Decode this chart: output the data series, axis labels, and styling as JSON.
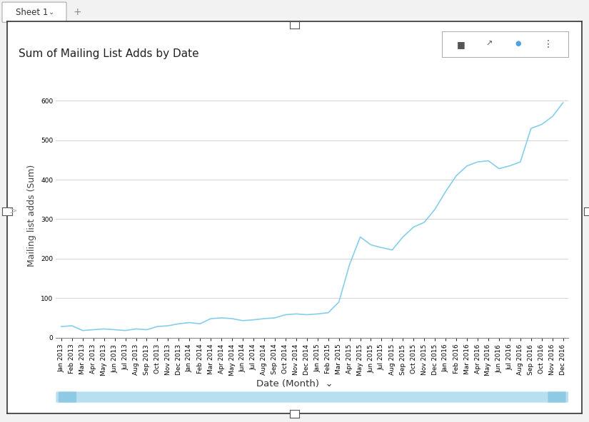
{
  "title": "Sum of Mailing List Adds by Date",
  "xlabel": "Date (Month)",
  "ylabel": "Mailing list adds (Sum)",
  "line_color": "#87CEEB",
  "line_width": 1.2,
  "background_color": "#ffffff",
  "grid_color": "#cccccc",
  "ylim": [
    0,
    620
  ],
  "yticks": [
    0,
    100,
    200,
    300,
    400,
    500,
    600
  ],
  "title_fontsize": 11,
  "axis_label_fontsize": 9,
  "tick_fontsize": 6.5,
  "months": [
    "Jan 2013",
    "Feb 2013",
    "Mar 2013",
    "Apr 2013",
    "May 2013",
    "Jun 2013",
    "Jul 2013",
    "Aug 2013",
    "Sep 2013",
    "Oct 2013",
    "Nov 2013",
    "Dec 2013",
    "Jan 2014",
    "Feb 2014",
    "Mar 2014",
    "Apr 2014",
    "May 2014",
    "Jun 2014",
    "Jul 2014",
    "Aug 2014",
    "Sep 2014",
    "Oct 2014",
    "Nov 2014",
    "Dec 2014",
    "Jan 2015",
    "Feb 2015",
    "Mar 2015",
    "Apr 2015",
    "May 2015",
    "Jun 2015",
    "Jul 2015",
    "Aug 2015",
    "Sep 2015",
    "Oct 2015",
    "Nov 2015",
    "Dec 2015",
    "Jan 2016",
    "Feb 2016",
    "Mar 2016",
    "Apr 2016",
    "May 2016",
    "Jun 2016",
    "Jul 2016",
    "Aug 2016",
    "Sep 2016",
    "Oct 2016",
    "Nov 2016",
    "Dec 2016"
  ],
  "values": [
    28,
    30,
    18,
    20,
    22,
    20,
    18,
    22,
    20,
    28,
    30,
    35,
    38,
    35,
    48,
    50,
    48,
    43,
    45,
    48,
    50,
    58,
    60,
    58,
    60,
    63,
    90,
    185,
    255,
    235,
    228,
    222,
    255,
    280,
    292,
    325,
    370,
    410,
    435,
    445,
    448,
    428,
    435,
    445,
    530,
    540,
    560,
    595
  ],
  "scrollbar_color": "#b8dff0",
  "tab_text": "Sheet 1",
  "outer_border_color": "#333333",
  "inner_border_color": "#555555",
  "tab_bg": "#f2f2f2",
  "chart_panel_border": "#333333"
}
